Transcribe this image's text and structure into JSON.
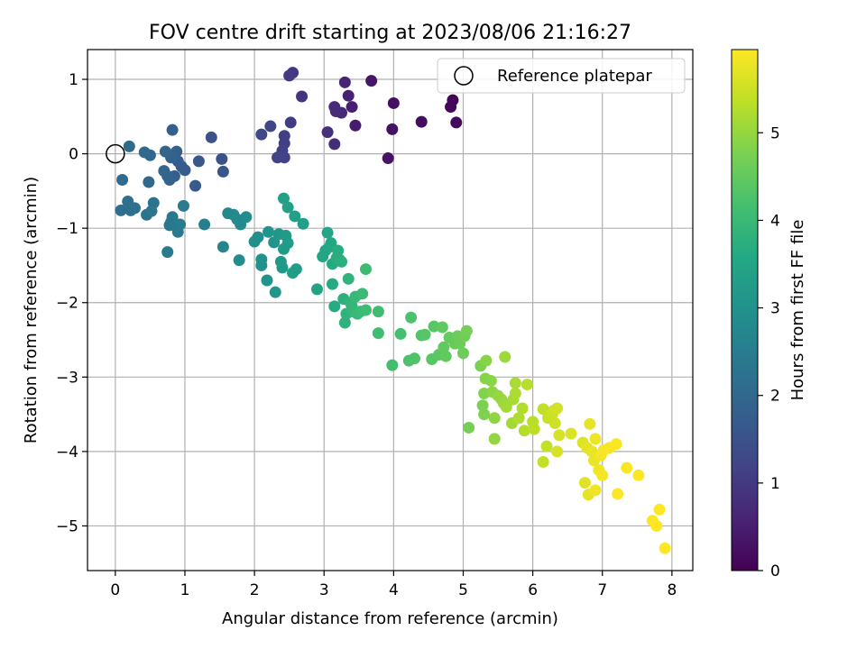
{
  "chart_data": {
    "type": "scatter",
    "title": "FOV centre drift starting at 2023/08/06 21:16:27",
    "xlabel": "Angular distance from reference (arcmin)",
    "ylabel": "Rotation from reference (arcmin)",
    "xlim": [
      -0.4,
      8.3
    ],
    "ylim": [
      -5.6,
      1.4
    ],
    "xticks": [
      0,
      1,
      2,
      3,
      4,
      5,
      6,
      7,
      8
    ],
    "yticks": [
      -5,
      -4,
      -3,
      -2,
      -1,
      0,
      1
    ],
    "grid": true,
    "legend": {
      "position": "top-right",
      "entries": [
        "Reference platepar"
      ]
    },
    "reference": {
      "x": 0,
      "y": 0,
      "marker": "open-circle"
    },
    "colorbar": {
      "label": "Hours from first FF file",
      "colormap": "viridis",
      "range": [
        0,
        5.95
      ],
      "ticks": [
        0,
        1,
        2,
        3,
        4,
        5
      ]
    },
    "points": [
      [
        4.85,
        0.72,
        0.05
      ],
      [
        4.82,
        0.63,
        0.1
      ],
      [
        4.9,
        0.42,
        0.12
      ],
      [
        4.4,
        0.43,
        0.2
      ],
      [
        4.0,
        0.68,
        0.25
      ],
      [
        3.98,
        0.33,
        0.28
      ],
      [
        3.92,
        -0.06,
        0.32
      ],
      [
        3.68,
        0.98,
        0.36
      ],
      [
        3.45,
        0.38,
        0.45
      ],
      [
        3.4,
        0.63,
        0.5
      ],
      [
        3.35,
        0.78,
        0.55
      ],
      [
        3.3,
        0.96,
        0.6
      ],
      [
        3.25,
        0.55,
        0.65
      ],
      [
        3.17,
        0.57,
        0.7
      ],
      [
        3.15,
        0.63,
        0.72
      ],
      [
        3.15,
        0.13,
        0.76
      ],
      [
        3.05,
        0.29,
        0.8
      ],
      [
        2.68,
        0.77,
        0.9
      ],
      [
        2.55,
        1.09,
        0.95
      ],
      [
        2.5,
        1.05,
        1.0
      ],
      [
        2.52,
        0.42,
        1.05
      ],
      [
        2.43,
        0.24,
        1.1
      ],
      [
        2.43,
        0.14,
        1.12
      ],
      [
        2.4,
        0.04,
        1.15
      ],
      [
        2.43,
        -0.05,
        1.18
      ],
      [
        2.33,
        -0.05,
        1.2
      ],
      [
        2.23,
        0.37,
        1.25
      ],
      [
        2.1,
        0.26,
        1.3
      ],
      [
        1.38,
        0.22,
        1.5
      ],
      [
        1.53,
        -0.07,
        1.55
      ],
      [
        1.55,
        -0.24,
        1.58
      ],
      [
        1.2,
        -0.1,
        1.62
      ],
      [
        1.15,
        -0.43,
        1.65
      ],
      [
        1.0,
        -0.22,
        1.7
      ],
      [
        0.95,
        -0.17,
        1.72
      ],
      [
        0.9,
        -0.1,
        1.75
      ],
      [
        0.88,
        0.03,
        1.78
      ],
      [
        0.85,
        -0.3,
        1.8
      ],
      [
        0.82,
        0.32,
        1.82
      ],
      [
        0.8,
        -0.05,
        1.85
      ],
      [
        0.78,
        -0.35,
        1.88
      ],
      [
        0.75,
        -0.3,
        1.9
      ],
      [
        0.72,
        0.03,
        1.92
      ],
      [
        0.7,
        -0.23,
        1.95
      ],
      [
        0.5,
        -0.02,
        1.98
      ],
      [
        0.42,
        0.02,
        2.0
      ],
      [
        0.48,
        -0.38,
        2.02
      ],
      [
        0.2,
        0.1,
        2.05
      ],
      [
        0.1,
        -0.35,
        2.08
      ],
      [
        0.08,
        -0.76,
        2.15
      ],
      [
        0.18,
        -0.64,
        2.18
      ],
      [
        0.22,
        -0.76,
        2.2
      ],
      [
        0.28,
        -0.73,
        2.22
      ],
      [
        0.45,
        -0.82,
        2.25
      ],
      [
        0.55,
        -0.66,
        2.28
      ],
      [
        0.52,
        -0.77,
        2.3
      ],
      [
        0.8,
        -0.92,
        2.32
      ],
      [
        0.82,
        -0.85,
        2.35
      ],
      [
        0.78,
        -0.96,
        2.38
      ],
      [
        0.75,
        -1.32,
        2.4
      ],
      [
        0.9,
        -1.05,
        2.42
      ],
      [
        0.93,
        -0.95,
        2.45
      ],
      [
        0.98,
        -0.7,
        2.48
      ],
      [
        1.28,
        -0.95,
        2.55
      ],
      [
        1.55,
        -1.25,
        2.7
      ],
      [
        1.62,
        -0.8,
        2.75
      ],
      [
        1.7,
        -0.82,
        2.78
      ],
      [
        1.75,
        -0.88,
        2.8
      ],
      [
        1.8,
        -0.95,
        2.82
      ],
      [
        1.88,
        -0.85,
        2.85
      ],
      [
        1.78,
        -1.43,
        2.88
      ],
      [
        2.0,
        -1.18,
        2.92
      ],
      [
        2.05,
        -1.12,
        2.95
      ],
      [
        2.1,
        -1.42,
        2.98
      ],
      [
        2.1,
        -1.5,
        3.0
      ],
      [
        2.18,
        -1.7,
        3.02
      ],
      [
        2.2,
        -1.05,
        3.05
      ],
      [
        2.28,
        -1.19,
        3.08
      ],
      [
        2.3,
        -1.86,
        3.1
      ],
      [
        2.35,
        -1.08,
        3.12
      ],
      [
        2.38,
        -1.45,
        3.15
      ],
      [
        2.4,
        -1.53,
        3.18
      ],
      [
        2.42,
        -1.28,
        3.2
      ],
      [
        2.45,
        -1.1,
        3.22
      ],
      [
        2.48,
        -1.2,
        3.25
      ],
      [
        2.55,
        -1.6,
        3.28
      ],
      [
        2.6,
        -1.55,
        3.3
      ],
      [
        2.58,
        -0.84,
        3.33
      ],
      [
        2.7,
        -0.94,
        3.36
      ],
      [
        2.42,
        -0.6,
        3.38
      ],
      [
        2.48,
        -0.72,
        3.4
      ],
      [
        2.9,
        -1.82,
        3.45
      ],
      [
        2.98,
        -1.38,
        3.48
      ],
      [
        3.02,
        -1.3,
        3.5
      ],
      [
        3.05,
        -1.06,
        3.52
      ],
      [
        3.08,
        -1.25,
        3.55
      ],
      [
        3.1,
        -1.2,
        3.58
      ],
      [
        3.12,
        -1.48,
        3.6
      ],
      [
        3.12,
        -1.75,
        3.62
      ],
      [
        3.15,
        -2.05,
        3.65
      ],
      [
        3.18,
        -1.4,
        3.68
      ],
      [
        3.2,
        -1.3,
        3.7
      ],
      [
        3.22,
        -1.42,
        3.72
      ],
      [
        3.25,
        -1.45,
        3.75
      ],
      [
        3.28,
        -1.95,
        3.78
      ],
      [
        3.3,
        -2.27,
        3.8
      ],
      [
        3.32,
        -2.15,
        3.82
      ],
      [
        3.35,
        -1.68,
        3.85
      ],
      [
        3.38,
        -2.0,
        3.88
      ],
      [
        3.4,
        -2.05,
        3.9
      ],
      [
        3.42,
        -2.12,
        3.92
      ],
      [
        3.45,
        -1.92,
        3.95
      ],
      [
        3.48,
        -2.15,
        3.98
      ],
      [
        3.52,
        -2.12,
        4.0
      ],
      [
        3.55,
        -1.88,
        4.02
      ],
      [
        3.6,
        -1.55,
        4.05
      ],
      [
        3.6,
        -2.1,
        4.08
      ],
      [
        3.78,
        -2.12,
        4.1
      ],
      [
        3.78,
        -2.41,
        4.12
      ],
      [
        3.98,
        -2.84,
        4.15
      ],
      [
        4.1,
        -2.42,
        4.18
      ],
      [
        4.25,
        -2.2,
        4.25
      ],
      [
        4.22,
        -2.78,
        4.28
      ],
      [
        4.3,
        -2.75,
        4.3
      ],
      [
        4.4,
        -2.44,
        4.32
      ],
      [
        4.45,
        -2.43,
        4.35
      ],
      [
        4.58,
        -2.32,
        4.38
      ],
      [
        4.55,
        -2.76,
        4.4
      ],
      [
        4.65,
        -2.7,
        4.42
      ],
      [
        4.7,
        -2.33,
        4.45
      ],
      [
        4.72,
        -2.6,
        4.48
      ],
      [
        4.75,
        -2.72,
        4.5
      ],
      [
        4.8,
        -2.47,
        4.52
      ],
      [
        4.88,
        -2.55,
        4.55
      ],
      [
        4.92,
        -2.45,
        4.58
      ],
      [
        4.95,
        -2.55,
        4.6
      ],
      [
        5.0,
        -2.68,
        4.62
      ],
      [
        5.02,
        -2.45,
        4.65
      ],
      [
        5.05,
        -2.38,
        4.68
      ],
      [
        5.08,
        -3.68,
        4.7
      ],
      [
        5.25,
        -2.85,
        4.75
      ],
      [
        5.28,
        -3.38,
        4.78
      ],
      [
        5.3,
        -3.5,
        4.8
      ],
      [
        5.3,
        -3.22,
        4.82
      ],
      [
        5.32,
        -3.02,
        4.85
      ],
      [
        5.33,
        -2.78,
        4.88
      ],
      [
        5.4,
        -3.05,
        4.9
      ],
      [
        5.42,
        -3.2,
        4.92
      ],
      [
        5.45,
        -3.55,
        4.95
      ],
      [
        5.45,
        -3.83,
        4.98
      ],
      [
        5.5,
        -3.25,
        5.0
      ],
      [
        5.55,
        -3.3,
        5.02
      ],
      [
        5.58,
        -3.35,
        5.05
      ],
      [
        5.6,
        -2.73,
        5.08
      ],
      [
        5.62,
        -3.4,
        5.1
      ],
      [
        5.7,
        -3.62,
        5.12
      ],
      [
        5.72,
        -3.3,
        5.15
      ],
      [
        5.75,
        -3.08,
        5.18
      ],
      [
        5.75,
        -3.22,
        5.2
      ],
      [
        5.8,
        -3.55,
        5.22
      ],
      [
        5.85,
        -3.42,
        5.25
      ],
      [
        5.88,
        -3.72,
        5.28
      ],
      [
        5.92,
        -3.1,
        5.3
      ],
      [
        6.0,
        -3.6,
        5.32
      ],
      [
        6.02,
        -3.7,
        5.35
      ],
      [
        6.15,
        -3.43,
        5.38
      ],
      [
        6.15,
        -4.14,
        5.4
      ],
      [
        6.2,
        -3.93,
        5.42
      ],
      [
        6.22,
        -3.55,
        5.45
      ],
      [
        6.28,
        -3.5,
        5.48
      ],
      [
        6.3,
        -3.45,
        5.5
      ],
      [
        6.32,
        -3.62,
        5.52
      ],
      [
        6.35,
        -3.42,
        5.55
      ],
      [
        6.35,
        -4.0,
        5.58
      ],
      [
        6.38,
        -3.78,
        5.6
      ],
      [
        6.55,
        -3.76,
        5.62
      ],
      [
        6.72,
        -3.88,
        5.65
      ],
      [
        6.75,
        -4.42,
        5.68
      ],
      [
        6.78,
        -3.95,
        5.7
      ],
      [
        6.8,
        -4.58,
        5.72
      ],
      [
        6.82,
        -3.63,
        5.74
      ],
      [
        6.85,
        -4.0,
        5.76
      ],
      [
        6.88,
        -4.12,
        5.78
      ],
      [
        6.9,
        -3.83,
        5.8
      ],
      [
        6.9,
        -4.52,
        5.82
      ],
      [
        6.95,
        -4.25,
        5.84
      ],
      [
        6.98,
        -4.05,
        5.86
      ],
      [
        7.0,
        -4.32,
        5.88
      ],
      [
        7.02,
        -3.98,
        5.89
      ],
      [
        7.1,
        -3.95,
        5.9
      ],
      [
        7.2,
        -3.9,
        5.91
      ],
      [
        7.22,
        -4.57,
        5.92
      ],
      [
        7.35,
        -4.22,
        5.93
      ],
      [
        7.52,
        -4.32,
        5.94
      ],
      [
        7.72,
        -4.93,
        5.95
      ],
      [
        7.78,
        -5.0,
        5.95
      ],
      [
        7.82,
        -4.78,
        5.95
      ],
      [
        7.9,
        -5.3,
        5.95
      ]
    ]
  }
}
